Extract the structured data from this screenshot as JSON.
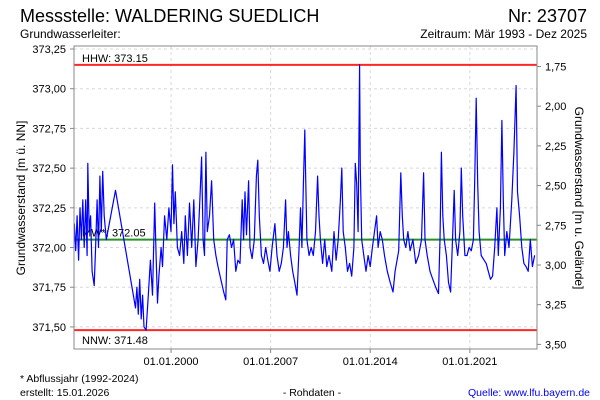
{
  "header": {
    "title": "Messstelle: WALDERING SUEDLICH",
    "number": "Nr: 23707",
    "aquifer": "Grundwasserleiter:",
    "period": "Zeitraum: Mär 1993 - Dez 2025"
  },
  "footer": {
    "note": "* Abflussjahr (1992-2024)",
    "created": "erstellt:  15.01.2026",
    "rawdata": "- Rohdaten -",
    "source": "Quelle: www.lfu.bayern.de"
  },
  "colors": {
    "series": "#0000ff",
    "extreme": "#ff0000",
    "mean": "#008000",
    "grid": "#d8d8d8",
    "source_link": "#0000ee"
  },
  "chart_data": {
    "type": "line",
    "title": "Messstelle: WALDERING SUEDLICH",
    "ylabel": "Grundwasserstand [m ü. NN]",
    "y2label": "Grundwasserstand [m u. Gelände]",
    "xlabel": "",
    "xlim": [
      1993.18,
      2025.72
    ],
    "ylim": [
      371.361,
      373.269
    ],
    "ground_level": 374.89,
    "grid": true,
    "yticks": [
      373.25,
      373.0,
      372.75,
      372.5,
      372.25,
      372.0,
      371.75,
      371.5
    ],
    "ytick_labels": [
      "373,25",
      "373,00",
      "372,75",
      "372,50",
      "372,25",
      "372,00",
      "371,75",
      "371,50"
    ],
    "y2ticks": [
      1.75,
      2.0,
      2.25,
      2.5,
      2.75,
      3.0,
      3.25,
      3.5
    ],
    "y2tick_labels": [
      "1,75",
      "2,00",
      "2,25",
      "2,50",
      "2,75",
      "3,00",
      "3,25",
      "3,50"
    ],
    "xticks": [
      2000,
      2007,
      2014,
      2021
    ],
    "xtick_labels": [
      "01.01.2000",
      "01.01.2007",
      "01.01.2014",
      "01.01.2021"
    ],
    "reference_lines": [
      {
        "name": "HHW",
        "label": "HHW: 373.15",
        "value": 373.15,
        "color": "#ff0000",
        "label_pos": "above"
      },
      {
        "name": "MW",
        "label": "MW*: 372.05",
        "value": 372.05,
        "color": "#008000",
        "label_pos": "above"
      },
      {
        "name": "NNW",
        "label": "NNW: 371.48",
        "value": 371.48,
        "color": "#ff0000",
        "label_pos": "below"
      }
    ],
    "series": [
      {
        "name": "Grundwasserstand",
        "color": "#0000ff",
        "points": [
          [
            1993.2,
            372.15
          ],
          [
            1993.3,
            371.98
          ],
          [
            1993.4,
            372.2
          ],
          [
            1993.5,
            371.92
          ],
          [
            1993.6,
            372.25
          ],
          [
            1993.7,
            372.05
          ],
          [
            1993.8,
            372.3
          ],
          [
            1993.9,
            372.0
          ],
          [
            1994.0,
            372.3
          ],
          [
            1994.1,
            371.95
          ],
          [
            1994.15,
            372.53
          ],
          [
            1994.25,
            372.1
          ],
          [
            1994.35,
            372.2
          ],
          [
            1994.45,
            371.85
          ],
          [
            1994.6,
            371.76
          ],
          [
            1994.7,
            372.0
          ],
          [
            1994.8,
            372.3
          ],
          [
            1994.9,
            372.0
          ],
          [
            1995.0,
            372.45
          ],
          [
            1995.1,
            372.1
          ],
          [
            1995.2,
            372.48
          ],
          [
            1995.3,
            372.2
          ],
          [
            1995.45,
            372.05
          ],
          [
            1996.1,
            372.36
          ],
          [
            1997.5,
            371.62
          ],
          [
            1997.6,
            371.75
          ],
          [
            1997.7,
            371.58
          ],
          [
            1997.8,
            371.8
          ],
          [
            1997.9,
            371.55
          ],
          [
            1998.0,
            371.7
          ],
          [
            1998.1,
            371.5
          ],
          [
            1998.25,
            371.48
          ],
          [
            1998.4,
            371.7
          ],
          [
            1998.55,
            371.92
          ],
          [
            1998.7,
            371.7
          ],
          [
            1998.85,
            372.28
          ],
          [
            1998.95,
            371.95
          ],
          [
            1999.05,
            371.65
          ],
          [
            1999.15,
            371.82
          ],
          [
            1999.3,
            372.0
          ],
          [
            1999.4,
            371.88
          ],
          [
            1999.55,
            372.2
          ],
          [
            1999.7,
            372.05
          ],
          [
            1999.85,
            372.25
          ],
          [
            2000.0,
            372.1
          ],
          [
            2000.1,
            372.52
          ],
          [
            2000.2,
            372.15
          ],
          [
            2000.3,
            372.35
          ],
          [
            2000.45,
            372.0
          ],
          [
            2000.6,
            371.95
          ],
          [
            2000.75,
            372.1
          ],
          [
            2000.9,
            371.9
          ],
          [
            2001.0,
            372.2
          ],
          [
            2001.15,
            371.95
          ],
          [
            2001.3,
            372.28
          ],
          [
            2001.45,
            372.0
          ],
          [
            2001.6,
            372.3
          ],
          [
            2001.75,
            371.88
          ],
          [
            2001.9,
            372.05
          ],
          [
            2002.05,
            372.35
          ],
          [
            2002.15,
            372.57
          ],
          [
            2002.25,
            372.05
          ],
          [
            2002.35,
            371.95
          ],
          [
            2002.45,
            372.6
          ],
          [
            2002.55,
            372.1
          ],
          [
            2002.7,
            372.2
          ],
          [
            2002.85,
            372.42
          ],
          [
            2003.0,
            372.05
          ],
          [
            2003.15,
            371.95
          ],
          [
            2003.3,
            371.88
          ],
          [
            2003.5,
            371.8
          ],
          [
            2003.7,
            371.72
          ],
          [
            2003.85,
            371.67
          ],
          [
            2003.95,
            372.05
          ],
          [
            2004.1,
            372.08
          ],
          [
            2004.25,
            372.0
          ],
          [
            2004.4,
            372.05
          ],
          [
            2004.55,
            371.85
          ],
          [
            2004.7,
            371.92
          ],
          [
            2004.85,
            371.9
          ],
          [
            2005.0,
            372.3
          ],
          [
            2005.1,
            372.05
          ],
          [
            2005.2,
            372.35
          ],
          [
            2005.3,
            372.08
          ],
          [
            2005.45,
            372.42
          ],
          [
            2005.55,
            372.0
          ],
          [
            2005.7,
            371.93
          ],
          [
            2005.85,
            372.05
          ],
          [
            2006.0,
            372.45
          ],
          [
            2006.1,
            372.55
          ],
          [
            2006.2,
            372.2
          ],
          [
            2006.35,
            371.95
          ],
          [
            2006.5,
            371.9
          ],
          [
            2006.65,
            372.0
          ],
          [
            2006.8,
            371.92
          ],
          [
            2006.95,
            371.85
          ],
          [
            2007.1,
            372.0
          ],
          [
            2007.3,
            372.15
          ],
          [
            2007.45,
            371.95
          ],
          [
            2007.6,
            371.85
          ],
          [
            2007.75,
            371.9
          ],
          [
            2007.9,
            372.0
          ],
          [
            2008.05,
            372.3
          ],
          [
            2008.15,
            372.0
          ],
          [
            2008.25,
            372.1
          ],
          [
            2008.4,
            371.95
          ],
          [
            2008.55,
            371.85
          ],
          [
            2008.7,
            371.78
          ],
          [
            2008.85,
            371.7
          ],
          [
            2009.0,
            372.0
          ],
          [
            2009.1,
            372.25
          ],
          [
            2009.2,
            372.0
          ],
          [
            2009.3,
            372.4
          ],
          [
            2009.4,
            372.74
          ],
          [
            2009.45,
            372.5
          ],
          [
            2009.55,
            372.05
          ],
          [
            2009.7,
            371.95
          ],
          [
            2009.85,
            372.0
          ],
          [
            2010.0,
            371.95
          ],
          [
            2010.15,
            372.1
          ],
          [
            2010.3,
            372.45
          ],
          [
            2010.4,
            372.2
          ],
          [
            2010.5,
            372.05
          ],
          [
            2010.65,
            371.9
          ],
          [
            2010.8,
            372.05
          ],
          [
            2010.95,
            371.88
          ],
          [
            2011.1,
            371.95
          ],
          [
            2011.3,
            371.85
          ],
          [
            2011.45,
            372.1
          ],
          [
            2011.6,
            371.92
          ],
          [
            2011.75,
            372.05
          ],
          [
            2011.9,
            372.3
          ],
          [
            2012.0,
            372.5
          ],
          [
            2012.1,
            372.1
          ],
          [
            2012.25,
            372.0
          ],
          [
            2012.4,
            371.85
          ],
          [
            2012.55,
            371.9
          ],
          [
            2012.7,
            371.82
          ],
          [
            2012.85,
            372.0
          ],
          [
            2012.95,
            372.53
          ],
          [
            2013.05,
            372.4
          ],
          [
            2013.15,
            372.1
          ],
          [
            2013.25,
            373.15
          ],
          [
            2013.3,
            372.5
          ],
          [
            2013.4,
            372.05
          ],
          [
            2013.55,
            371.95
          ],
          [
            2013.7,
            371.85
          ],
          [
            2013.85,
            371.95
          ],
          [
            2014.0,
            371.88
          ],
          [
            2014.15,
            372.0
          ],
          [
            2014.3,
            372.1
          ],
          [
            2014.45,
            372.2
          ],
          [
            2014.55,
            372.0
          ],
          [
            2014.7,
            372.1
          ],
          [
            2014.85,
            372.05
          ],
          [
            2015.0,
            371.95
          ],
          [
            2015.2,
            371.85
          ],
          [
            2015.4,
            371.78
          ],
          [
            2015.6,
            371.72
          ],
          [
            2015.75,
            371.85
          ],
          [
            2016.0,
            371.98
          ],
          [
            2016.15,
            372.47
          ],
          [
            2016.25,
            372.2
          ],
          [
            2016.35,
            372.05
          ],
          [
            2016.5,
            372.0
          ],
          [
            2016.65,
            372.1
          ],
          [
            2016.8,
            371.98
          ],
          [
            2017.0,
            372.05
          ],
          [
            2017.2,
            371.9
          ],
          [
            2017.4,
            371.95
          ],
          [
            2017.6,
            372.05
          ],
          [
            2017.75,
            372.47
          ],
          [
            2017.85,
            372.05
          ],
          [
            2018.0,
            371.95
          ],
          [
            2018.2,
            371.85
          ],
          [
            2018.4,
            371.8
          ],
          [
            2018.6,
            371.75
          ],
          [
            2018.8,
            371.71
          ],
          [
            2018.9,
            372.05
          ],
          [
            2019.0,
            372.6
          ],
          [
            2019.1,
            372.2
          ],
          [
            2019.2,
            372.05
          ],
          [
            2019.35,
            371.95
          ],
          [
            2019.5,
            371.78
          ],
          [
            2019.65,
            371.72
          ],
          [
            2019.8,
            372.1
          ],
          [
            2019.9,
            372.36
          ],
          [
            2020.0,
            372.05
          ],
          [
            2020.15,
            371.95
          ],
          [
            2020.3,
            372.1
          ],
          [
            2020.4,
            372.5
          ],
          [
            2020.5,
            372.2
          ],
          [
            2020.65,
            371.95
          ],
          [
            2020.8,
            371.95
          ],
          [
            2020.95,
            372.0
          ],
          [
            2021.1,
            371.98
          ],
          [
            2021.25,
            372.05
          ],
          [
            2021.35,
            372.45
          ],
          [
            2021.45,
            372.94
          ],
          [
            2021.55,
            372.4
          ],
          [
            2021.65,
            372.1
          ],
          [
            2021.8,
            371.95
          ],
          [
            2022.0,
            371.92
          ],
          [
            2022.15,
            371.9
          ],
          [
            2022.3,
            371.85
          ],
          [
            2022.45,
            371.8
          ],
          [
            2022.6,
            371.82
          ],
          [
            2022.75,
            372.0
          ],
          [
            2022.9,
            372.25
          ],
          [
            2023.0,
            371.95
          ],
          [
            2023.15,
            372.25
          ],
          [
            2023.25,
            372.8
          ],
          [
            2023.35,
            372.3
          ],
          [
            2023.45,
            371.95
          ],
          [
            2023.6,
            372.1
          ],
          [
            2023.75,
            372.0
          ],
          [
            2023.95,
            372.3
          ],
          [
            2024.1,
            372.6
          ],
          [
            2024.25,
            373.02
          ],
          [
            2024.35,
            372.35
          ],
          [
            2024.5,
            372.2
          ],
          [
            2024.65,
            372.0
          ],
          [
            2024.8,
            371.9
          ],
          [
            2024.95,
            371.88
          ],
          [
            2025.1,
            371.85
          ],
          [
            2025.25,
            372.05
          ],
          [
            2025.4,
            371.88
          ],
          [
            2025.55,
            371.95
          ]
        ]
      }
    ]
  }
}
